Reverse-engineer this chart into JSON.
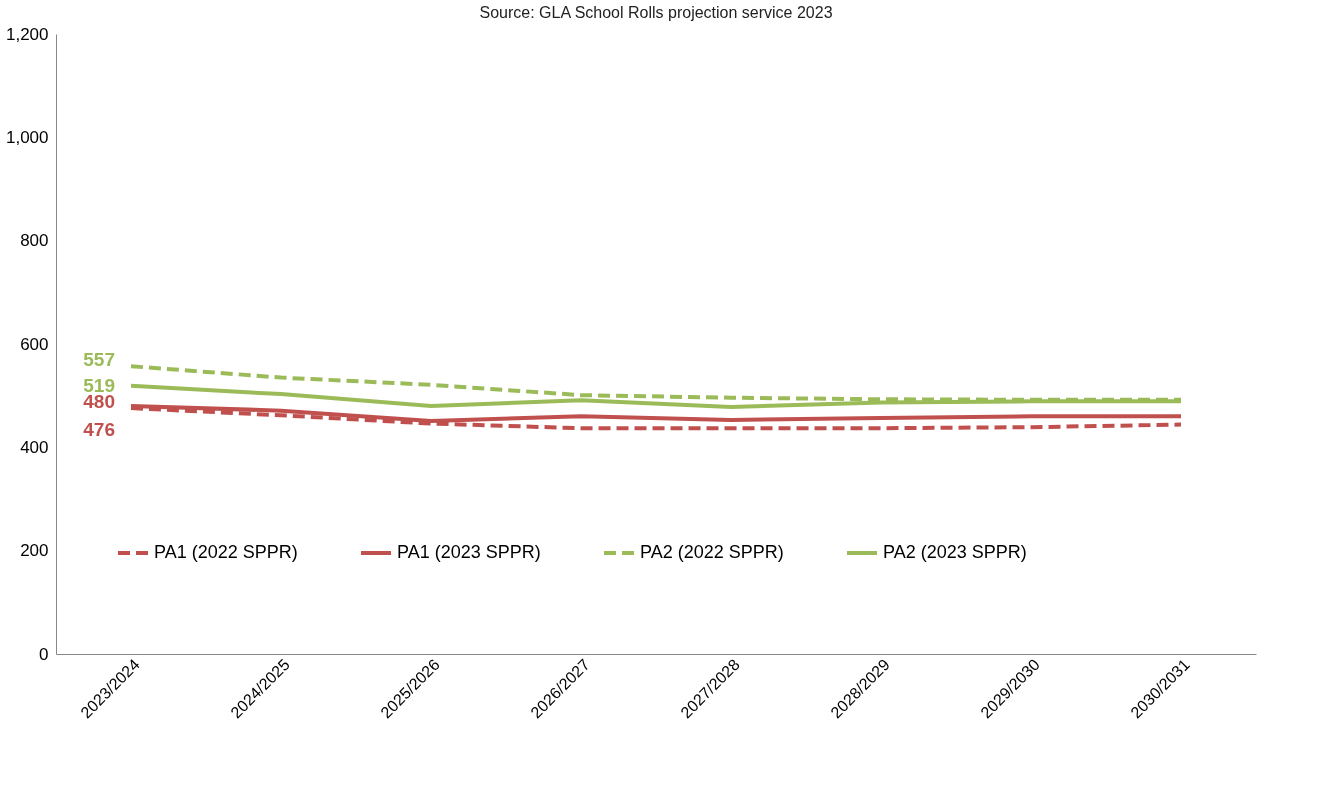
{
  "chart_data": {
    "type": "line",
    "annotations": [
      "Source: GLA School Rolls projection service 2023"
    ],
    "categories": [
      "2023/2024",
      "2024/2025",
      "2025/2026",
      "2026/2027",
      "2027/2028",
      "2028/2029",
      "2029/2030",
      "2030/2031"
    ],
    "series": [
      {
        "name": "PA1 (2022 SPPR)",
        "color": "#c0504d",
        "line_style": "dashed",
        "values": [
          476,
          462,
          446,
          437,
          437,
          437,
          439,
          444
        ],
        "value_labels": [
          "476",
          null,
          null,
          null,
          null,
          null,
          null,
          null
        ]
      },
      {
        "name": "PA1 (2023 SPPR)",
        "color": "#c0504d",
        "line_style": "solid",
        "values": [
          480,
          471,
          451,
          460,
          453,
          457,
          460,
          460
        ],
        "value_labels": [
          "480",
          null,
          null,
          null,
          null,
          null,
          null,
          null
        ]
      },
      {
        "name": "PA2 (2022 SPPR)",
        "color": "#9bbb59",
        "line_style": "dashed",
        "values": [
          557,
          535,
          521,
          501,
          496,
          493,
          492,
          492
        ],
        "value_labels": [
          "557",
          null,
          null,
          null,
          null,
          null,
          null,
          null
        ]
      },
      {
        "name": "PA2 (2023 SPPR)",
        "color": "#9bbb59",
        "line_style": "solid",
        "values": [
          519,
          503,
          480,
          491,
          478,
          487,
          489,
          489
        ],
        "value_labels": [
          "519",
          null,
          null,
          null,
          null,
          null,
          null,
          null
        ]
      }
    ],
    "ylim": [
      0,
      1200
    ],
    "yticks": [
      0,
      200,
      400,
      600,
      800,
      {
        "value": 1000,
        "label": "1,000"
      },
      {
        "value": 1200,
        "label": "1,200"
      }
    ],
    "grid": false,
    "legend": "bottom",
    "marker": "none"
  }
}
